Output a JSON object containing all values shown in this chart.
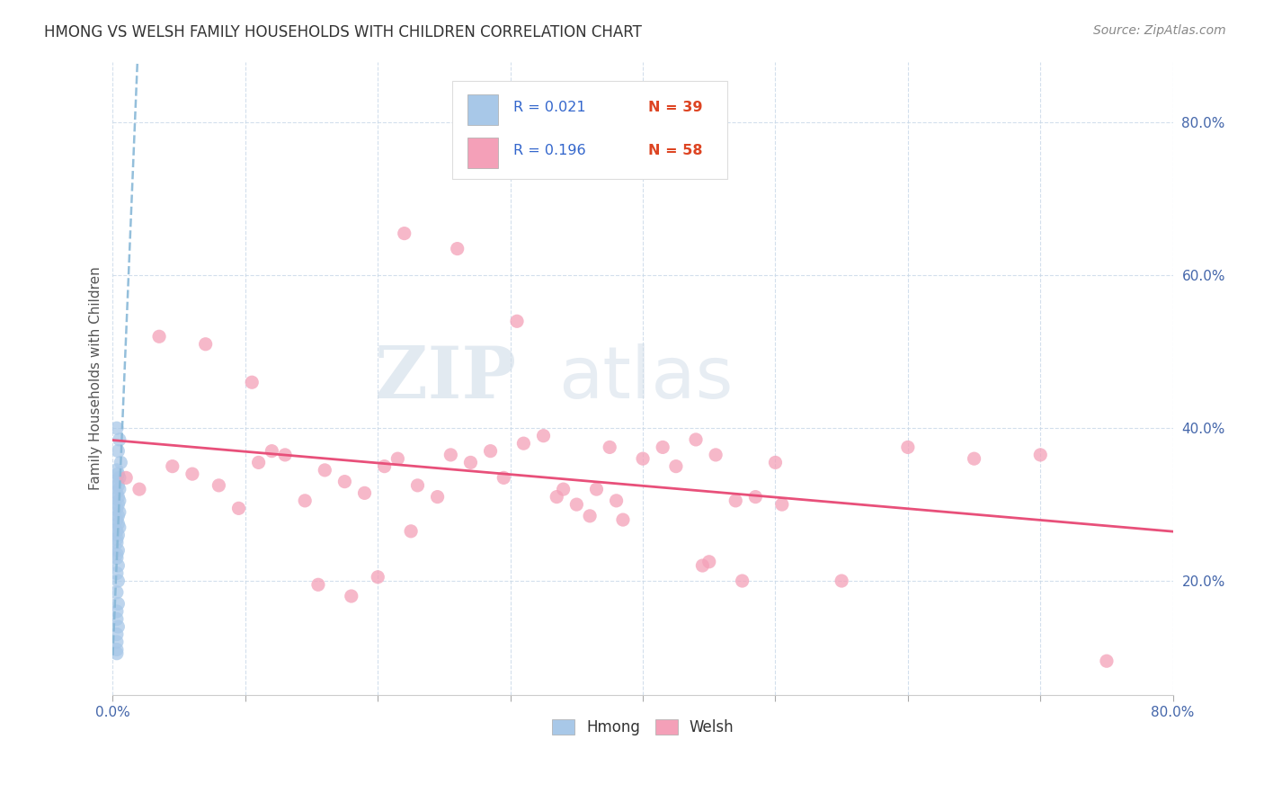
{
  "title": "HMONG VS WELSH FAMILY HOUSEHOLDS WITH CHILDREN CORRELATION CHART",
  "source": "Source: ZipAtlas.com",
  "ylabel": "Family Households with Children",
  "xlim": [
    0.0,
    80.0
  ],
  "ylim": [
    5.0,
    88.0
  ],
  "ytick_vals": [
    20.0,
    40.0,
    60.0,
    80.0
  ],
  "ytick_labels": [
    "20.0%",
    "40.0%",
    "60.0%",
    "80.0%"
  ],
  "xtick_vals": [
    0.0,
    10.0,
    20.0,
    30.0,
    40.0,
    50.0,
    60.0,
    70.0,
    80.0
  ],
  "xtick_labels": [
    "0.0%",
    "",
    "",
    "",
    "",
    "",
    "",
    "",
    "80.0%"
  ],
  "legend_r_hmong": "R = 0.021",
  "legend_n_hmong": "N = 39",
  "legend_r_welsh": "R = 0.196",
  "legend_n_welsh": "N = 58",
  "hmong_color": "#a8c8e8",
  "welsh_color": "#f4a0b8",
  "hmong_line_color": "#88b8d8",
  "welsh_line_color": "#e8507a",
  "r_text_color": "#3366cc",
  "n_text_color": "#dd4422",
  "background_color": "#ffffff",
  "grid_color": "#c8d8e8",
  "title_color": "#333333",
  "ylabel_color": "#555555",
  "tick_color": "#4466aa",
  "watermark_color": "#d0dce8",
  "hmong_x": [
    0.3,
    0.5,
    0.4,
    0.6,
    0.3,
    0.4,
    0.5,
    0.3,
    0.4,
    0.5,
    0.3,
    0.4,
    0.5,
    0.4,
    0.3,
    0.5,
    0.4,
    0.3,
    0.4,
    0.5,
    0.3,
    0.4,
    0.3,
    0.4,
    0.3,
    0.4,
    0.3,
    0.4,
    0.3,
    0.4,
    0.3,
    0.3,
    0.4,
    0.3,
    0.3,
    0.3,
    0.3,
    0.3,
    0.3
  ],
  "hmong_y": [
    40.0,
    38.5,
    37.0,
    35.5,
    34.5,
    34.0,
    33.5,
    33.0,
    32.5,
    32.0,
    31.5,
    31.0,
    30.5,
    30.0,
    29.5,
    29.0,
    28.5,
    28.0,
    27.5,
    27.0,
    26.5,
    26.0,
    25.0,
    24.0,
    23.0,
    22.0,
    21.0,
    20.0,
    18.5,
    17.0,
    16.0,
    15.0,
    14.0,
    13.0,
    12.0,
    11.0,
    25.5,
    23.5,
    10.5
  ],
  "welsh_x": [
    1.0,
    2.0,
    4.5,
    6.0,
    8.0,
    9.5,
    11.0,
    13.0,
    14.5,
    16.0,
    17.5,
    19.0,
    20.5,
    21.5,
    23.0,
    24.5,
    25.5,
    27.0,
    28.5,
    29.5,
    31.0,
    32.5,
    33.5,
    35.0,
    36.5,
    37.5,
    38.5,
    40.0,
    41.5,
    42.5,
    44.0,
    45.5,
    47.0,
    48.5,
    50.0,
    34.0,
    36.0,
    44.5,
    47.5,
    20.0,
    15.5,
    18.0,
    22.0,
    26.0,
    30.5,
    38.0,
    45.0,
    50.5,
    55.0,
    60.0,
    65.0,
    70.0,
    75.0,
    7.0,
    12.0,
    3.5,
    10.5,
    22.5
  ],
  "welsh_y": [
    33.5,
    32.0,
    35.0,
    34.0,
    32.5,
    29.5,
    35.5,
    36.5,
    30.5,
    34.5,
    33.0,
    31.5,
    35.0,
    36.0,
    32.5,
    31.0,
    36.5,
    35.5,
    37.0,
    33.5,
    38.0,
    39.0,
    31.0,
    30.0,
    32.0,
    37.5,
    28.0,
    36.0,
    37.5,
    35.0,
    38.5,
    36.5,
    30.5,
    31.0,
    35.5,
    32.0,
    28.5,
    22.0,
    20.0,
    20.5,
    19.5,
    18.0,
    65.5,
    63.5,
    54.0,
    30.5,
    22.5,
    30.0,
    20.0,
    37.5,
    36.0,
    36.5,
    9.5,
    51.0,
    37.0,
    52.0,
    46.0,
    26.5
  ]
}
